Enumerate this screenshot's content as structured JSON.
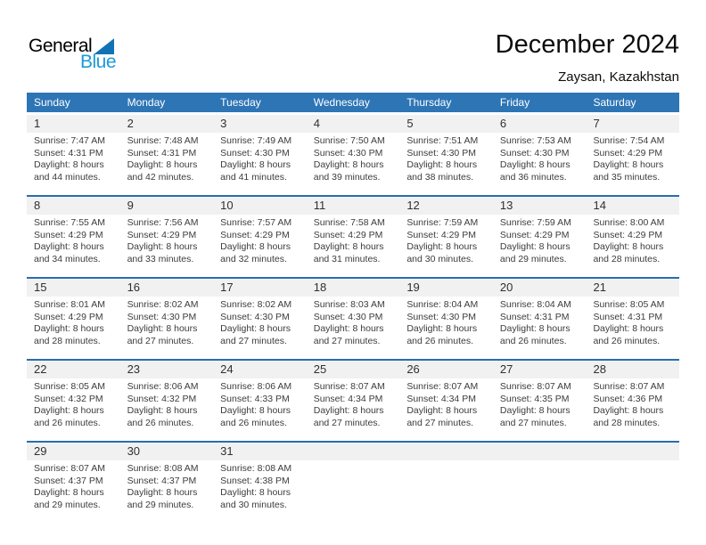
{
  "logo": {
    "part1": "General",
    "part2": "Blue"
  },
  "header": {
    "title": "December 2024",
    "location": "Zaysan, Kazakhstan"
  },
  "weekday_headers": [
    "Sunday",
    "Monday",
    "Tuesday",
    "Wednesday",
    "Thursday",
    "Friday",
    "Saturday"
  ],
  "colors": {
    "weekday_bar": "#2E75B6",
    "week_divider": "#2A6DAD",
    "number_strip": "#F1F1F1",
    "logo_text_blue": "#1C9AD9",
    "logo_triangle": "#1173B4"
  },
  "weeks": [
    [
      {
        "day": "1",
        "lines": [
          "Sunrise: 7:47 AM",
          "Sunset: 4:31 PM",
          "Daylight: 8 hours",
          "and 44 minutes."
        ]
      },
      {
        "day": "2",
        "lines": [
          "Sunrise: 7:48 AM",
          "Sunset: 4:31 PM",
          "Daylight: 8 hours",
          "and 42 minutes."
        ]
      },
      {
        "day": "3",
        "lines": [
          "Sunrise: 7:49 AM",
          "Sunset: 4:30 PM",
          "Daylight: 8 hours",
          "and 41 minutes."
        ]
      },
      {
        "day": "4",
        "lines": [
          "Sunrise: 7:50 AM",
          "Sunset: 4:30 PM",
          "Daylight: 8 hours",
          "and 39 minutes."
        ]
      },
      {
        "day": "5",
        "lines": [
          "Sunrise: 7:51 AM",
          "Sunset: 4:30 PM",
          "Daylight: 8 hours",
          "and 38 minutes."
        ]
      },
      {
        "day": "6",
        "lines": [
          "Sunrise: 7:53 AM",
          "Sunset: 4:30 PM",
          "Daylight: 8 hours",
          "and 36 minutes."
        ]
      },
      {
        "day": "7",
        "lines": [
          "Sunrise: 7:54 AM",
          "Sunset: 4:29 PM",
          "Daylight: 8 hours",
          "and 35 minutes."
        ]
      }
    ],
    [
      {
        "day": "8",
        "lines": [
          "Sunrise: 7:55 AM",
          "Sunset: 4:29 PM",
          "Daylight: 8 hours",
          "and 34 minutes."
        ]
      },
      {
        "day": "9",
        "lines": [
          "Sunrise: 7:56 AM",
          "Sunset: 4:29 PM",
          "Daylight: 8 hours",
          "and 33 minutes."
        ]
      },
      {
        "day": "10",
        "lines": [
          "Sunrise: 7:57 AM",
          "Sunset: 4:29 PM",
          "Daylight: 8 hours",
          "and 32 minutes."
        ]
      },
      {
        "day": "11",
        "lines": [
          "Sunrise: 7:58 AM",
          "Sunset: 4:29 PM",
          "Daylight: 8 hours",
          "and 31 minutes."
        ]
      },
      {
        "day": "12",
        "lines": [
          "Sunrise: 7:59 AM",
          "Sunset: 4:29 PM",
          "Daylight: 8 hours",
          "and 30 minutes."
        ]
      },
      {
        "day": "13",
        "lines": [
          "Sunrise: 7:59 AM",
          "Sunset: 4:29 PM",
          "Daylight: 8 hours",
          "and 29 minutes."
        ]
      },
      {
        "day": "14",
        "lines": [
          "Sunrise: 8:00 AM",
          "Sunset: 4:29 PM",
          "Daylight: 8 hours",
          "and 28 minutes."
        ]
      }
    ],
    [
      {
        "day": "15",
        "lines": [
          "Sunrise: 8:01 AM",
          "Sunset: 4:29 PM",
          "Daylight: 8 hours",
          "and 28 minutes."
        ]
      },
      {
        "day": "16",
        "lines": [
          "Sunrise: 8:02 AM",
          "Sunset: 4:30 PM",
          "Daylight: 8 hours",
          "and 27 minutes."
        ]
      },
      {
        "day": "17",
        "lines": [
          "Sunrise: 8:02 AM",
          "Sunset: 4:30 PM",
          "Daylight: 8 hours",
          "and 27 minutes."
        ]
      },
      {
        "day": "18",
        "lines": [
          "Sunrise: 8:03 AM",
          "Sunset: 4:30 PM",
          "Daylight: 8 hours",
          "and 27 minutes."
        ]
      },
      {
        "day": "19",
        "lines": [
          "Sunrise: 8:04 AM",
          "Sunset: 4:30 PM",
          "Daylight: 8 hours",
          "and 26 minutes."
        ]
      },
      {
        "day": "20",
        "lines": [
          "Sunrise: 8:04 AM",
          "Sunset: 4:31 PM",
          "Daylight: 8 hours",
          "and 26 minutes."
        ]
      },
      {
        "day": "21",
        "lines": [
          "Sunrise: 8:05 AM",
          "Sunset: 4:31 PM",
          "Daylight: 8 hours",
          "and 26 minutes."
        ]
      }
    ],
    [
      {
        "day": "22",
        "lines": [
          "Sunrise: 8:05 AM",
          "Sunset: 4:32 PM",
          "Daylight: 8 hours",
          "and 26 minutes."
        ]
      },
      {
        "day": "23",
        "lines": [
          "Sunrise: 8:06 AM",
          "Sunset: 4:32 PM",
          "Daylight: 8 hours",
          "and 26 minutes."
        ]
      },
      {
        "day": "24",
        "lines": [
          "Sunrise: 8:06 AM",
          "Sunset: 4:33 PM",
          "Daylight: 8 hours",
          "and 26 minutes."
        ]
      },
      {
        "day": "25",
        "lines": [
          "Sunrise: 8:07 AM",
          "Sunset: 4:34 PM",
          "Daylight: 8 hours",
          "and 27 minutes."
        ]
      },
      {
        "day": "26",
        "lines": [
          "Sunrise: 8:07 AM",
          "Sunset: 4:34 PM",
          "Daylight: 8 hours",
          "and 27 minutes."
        ]
      },
      {
        "day": "27",
        "lines": [
          "Sunrise: 8:07 AM",
          "Sunset: 4:35 PM",
          "Daylight: 8 hours",
          "and 27 minutes."
        ]
      },
      {
        "day": "28",
        "lines": [
          "Sunrise: 8:07 AM",
          "Sunset: 4:36 PM",
          "Daylight: 8 hours",
          "and 28 minutes."
        ]
      }
    ],
    [
      {
        "day": "29",
        "lines": [
          "Sunrise: 8:07 AM",
          "Sunset: 4:37 PM",
          "Daylight: 8 hours",
          "and 29 minutes."
        ]
      },
      {
        "day": "30",
        "lines": [
          "Sunrise: 8:08 AM",
          "Sunset: 4:37 PM",
          "Daylight: 8 hours",
          "and 29 minutes."
        ]
      },
      {
        "day": "31",
        "lines": [
          "Sunrise: 8:08 AM",
          "Sunset: 4:38 PM",
          "Daylight: 8 hours",
          "and 30 minutes."
        ]
      },
      null,
      null,
      null,
      null
    ]
  ]
}
